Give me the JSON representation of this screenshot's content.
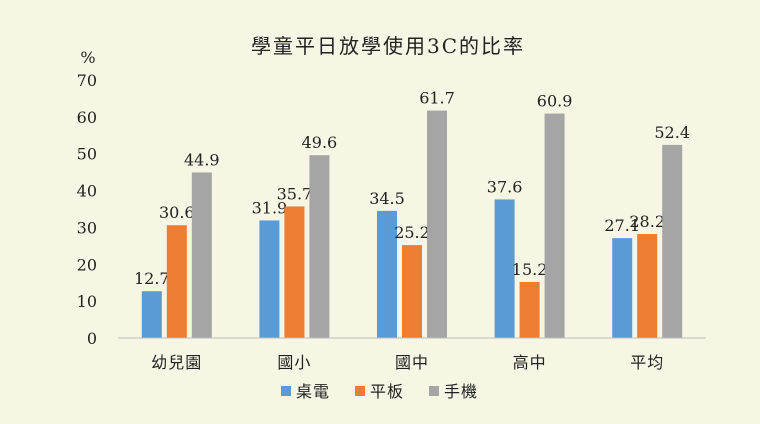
{
  "chart_data": {
    "type": "bar",
    "title": "學童平日放學使用3C的比率",
    "ylabel": "%",
    "xlabel": "",
    "ylim": [
      0,
      70
    ],
    "yticks": [
      0,
      10,
      20,
      30,
      40,
      50,
      60,
      70
    ],
    "grid": false,
    "legend_position": "bottom",
    "categories": [
      "幼兒園",
      "國小",
      "國中",
      "高中",
      "平均"
    ],
    "series": [
      {
        "name": "桌電",
        "color": "#5b9bd5",
        "values": [
          12.7,
          31.9,
          34.5,
          37.6,
          27.1
        ]
      },
      {
        "name": "平板",
        "color": "#ed7d31",
        "values": [
          30.6,
          35.7,
          25.2,
          15.2,
          28.2
        ]
      },
      {
        "name": "手機",
        "color": "#a5a5a5",
        "values": [
          44.9,
          49.6,
          61.7,
          60.9,
          52.4
        ]
      }
    ]
  }
}
